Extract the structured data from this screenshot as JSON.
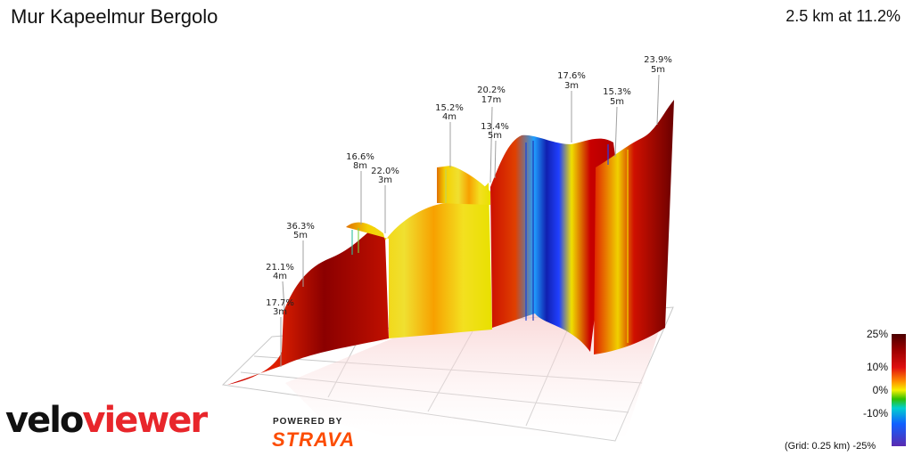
{
  "header": {
    "title": "Mur Kapeelmur Bergolo",
    "summary": "2.5 km at 11.2%"
  },
  "chart_data": {
    "type": "area",
    "annotations": [
      {
        "grade": "17.7%",
        "length": "3m"
      },
      {
        "grade": "21.1%",
        "length": "4m"
      },
      {
        "grade": "36.3%",
        "length": "5m"
      },
      {
        "grade": "16.6%",
        "length": "8m"
      },
      {
        "grade": "22.0%",
        "length": "3m"
      },
      {
        "grade": "15.2%",
        "length": "4m"
      },
      {
        "grade": "20.2%",
        "length": "17m"
      },
      {
        "grade": "13.4%",
        "length": "5m"
      },
      {
        "grade": "17.6%",
        "length": "3m"
      },
      {
        "grade": "15.3%",
        "length": "5m"
      },
      {
        "grade": "23.9%",
        "length": "5m"
      }
    ],
    "legend": {
      "ticks": [
        "25%",
        "10%",
        "0%",
        "-10%",
        "-25%"
      ],
      "grid_note": "(Grid: 0.25 km)"
    }
  },
  "branding": {
    "logo_part1": "velo",
    "logo_part2": "viewer",
    "powered": "POWERED BY",
    "strava": "STRAVA"
  },
  "colors": {
    "steep": "#8b0000",
    "red": "#d40000",
    "orange": "#ff8800",
    "yellow": "#ece800",
    "blue": "#1a2ad0"
  }
}
